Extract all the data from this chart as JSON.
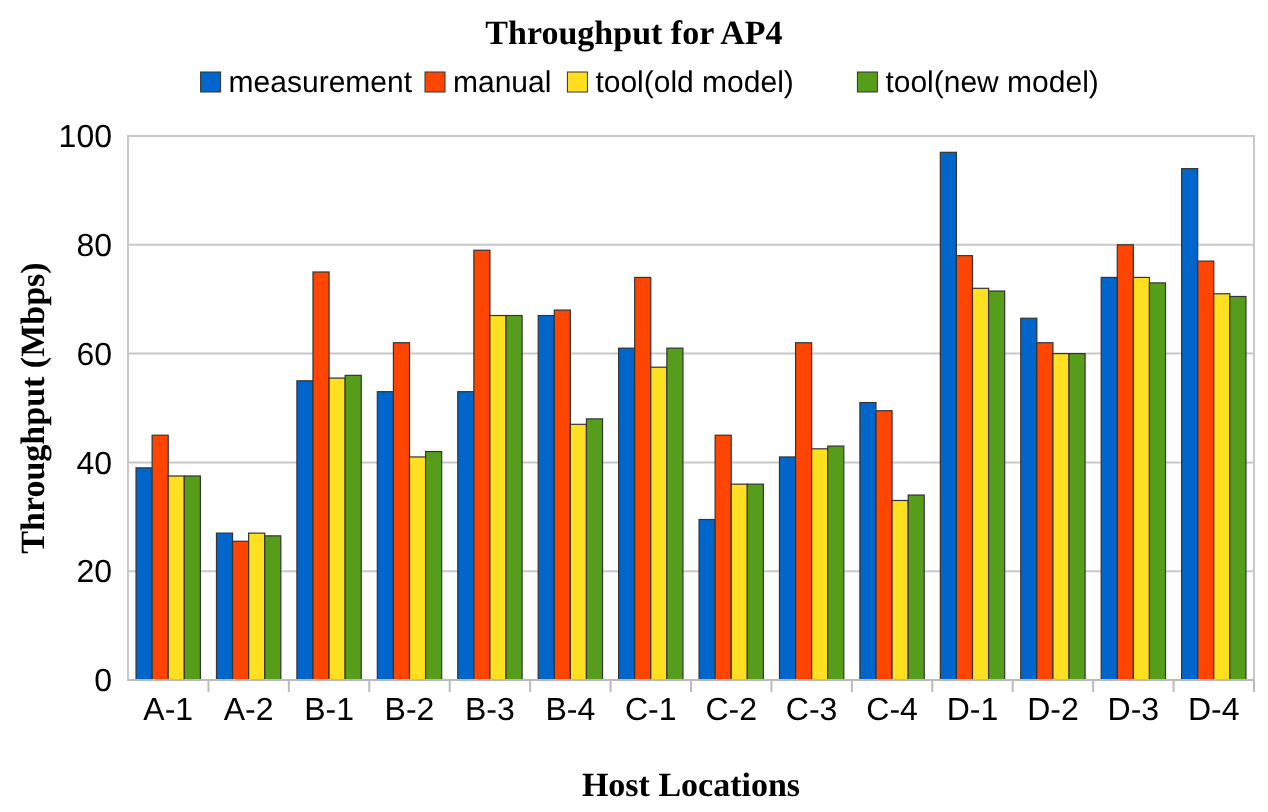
{
  "chart_data": {
    "type": "bar",
    "title": "Throughput for AP4",
    "xlabel": "Host Locations",
    "ylabel": "Throughput (Mbps)",
    "categories": [
      "A-1",
      "A-2",
      "B-1",
      "B-2",
      "B-3",
      "B-4",
      "C-1",
      "C-2",
      "C-3",
      "C-4",
      "D-1",
      "D-2",
      "D-3",
      "D-4"
    ],
    "series": [
      {
        "name": "measurement",
        "color": "#0066cc",
        "values": [
          39,
          27,
          55,
          53,
          53,
          67,
          61,
          29.5,
          41,
          51,
          97,
          66.5,
          74,
          94
        ]
      },
      {
        "name": "manual",
        "color": "#ff4500",
        "values": [
          45,
          25.5,
          75,
          62,
          79,
          68,
          74,
          45,
          62,
          49.5,
          78,
          62,
          80,
          77
        ]
      },
      {
        "name": "tool(old model)",
        "color": "#ffe020",
        "values": [
          37.5,
          27,
          55.5,
          41,
          67,
          47,
          57.5,
          36,
          42.5,
          33,
          72,
          60,
          74,
          71
        ]
      },
      {
        "name": "tool(new model)",
        "color": "#579d1c",
        "values": [
          37.5,
          26.5,
          56,
          42,
          67,
          48,
          61,
          36,
          43,
          34,
          71.5,
          60,
          73,
          70.5
        ]
      }
    ],
    "ylim": [
      0,
      100
    ],
    "yticks": [
      0,
      20,
      40,
      60,
      80,
      100
    ],
    "grid": "y",
    "legend": "top"
  }
}
